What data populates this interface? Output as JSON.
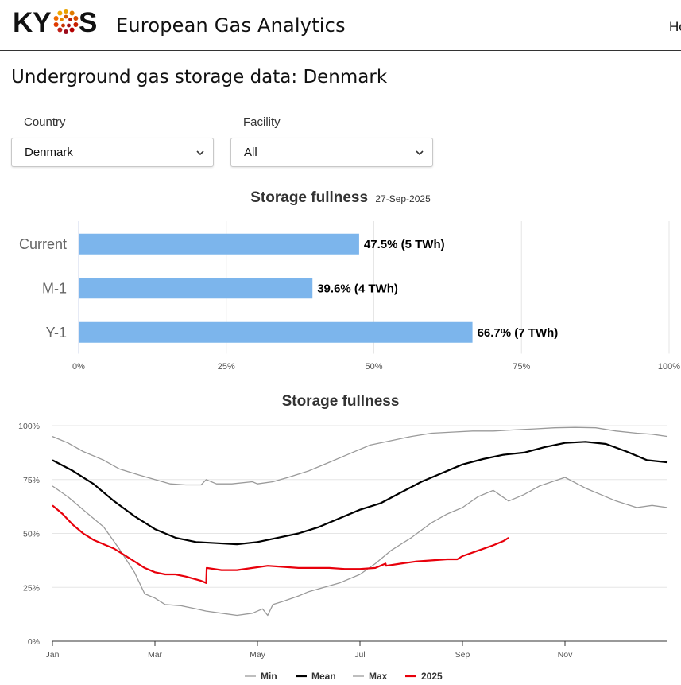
{
  "header": {
    "logo_text": "KYOS",
    "app_title": "European Gas Analytics",
    "nav_link": "Home"
  },
  "page": {
    "title": "Underground gas storage data: Denmark"
  },
  "filters": {
    "country_label": "Country",
    "country_value": "Denmark",
    "facility_label": "Facility",
    "facility_value": "All"
  },
  "colors": {
    "bar": "#7cb5ec",
    "min": "#9a9a9a",
    "mean": "#000000",
    "max": "#9a9a9a",
    "current_year": "#e8000b"
  },
  "chart_data": [
    {
      "type": "bar",
      "title": "Storage fullness",
      "subtitle": "27-Sep-2025",
      "orientation": "horizontal",
      "categories": [
        "Current",
        "M-1",
        "Y-1"
      ],
      "values": [
        47.5,
        39.6,
        66.7
      ],
      "data_labels": [
        "47.5% (5 TWh)",
        "39.6% (4 TWh)",
        "66.7% (7 TWh)"
      ],
      "x_ticks": [
        "0%",
        "25%",
        "50%",
        "75%",
        "100%"
      ],
      "xlim": [
        0,
        100
      ],
      "grid": true
    },
    {
      "type": "line",
      "title": "Storage fullness",
      "x_ticks": [
        "Jan",
        "Mar",
        "May",
        "Jul",
        "Sep",
        "Nov"
      ],
      "x_tick_months": [
        1,
        3,
        5,
        7,
        9,
        11
      ],
      "y_ticks": [
        "0%",
        "25%",
        "50%",
        "75%",
        "100%"
      ],
      "ylim": [
        0,
        100
      ],
      "xlim": [
        1,
        13
      ],
      "grid": true,
      "legend_position": "bottom",
      "series": [
        {
          "name": "Min",
          "color_key": "min",
          "x": [
            1.0,
            1.3,
            1.6,
            2.0,
            2.3,
            2.6,
            2.8,
            3.0,
            3.2,
            3.5,
            3.8,
            4.0,
            4.3,
            4.6,
            4.9,
            5.1,
            5.2,
            5.3,
            5.5,
            5.8,
            6.0,
            6.3,
            6.6,
            7.0,
            7.3,
            7.6,
            8.0,
            8.4,
            8.7,
            8.8,
            9.0,
            9.3,
            9.6,
            9.9,
            10.2,
            10.5,
            11.0,
            11.4,
            11.7,
            12.0,
            12.4,
            12.7,
            13.0
          ],
          "y": [
            72,
            67,
            61,
            53,
            43,
            32,
            22,
            20,
            17,
            16.5,
            15,
            14,
            13,
            12,
            13,
            15,
            12,
            17,
            18.5,
            21,
            23,
            25,
            27,
            31,
            36,
            42,
            48,
            55,
            59,
            60,
            62,
            67,
            70,
            65,
            68,
            72,
            76,
            71,
            68,
            65,
            62,
            63,
            62
          ]
        },
        {
          "name": "Mean",
          "color_key": "mean",
          "x": [
            1.0,
            1.4,
            1.8,
            2.2,
            2.6,
            3.0,
            3.4,
            3.8,
            4.2,
            4.6,
            5.0,
            5.4,
            5.8,
            6.2,
            6.6,
            7.0,
            7.4,
            7.8,
            8.2,
            8.6,
            9.0,
            9.4,
            9.8,
            10.2,
            10.6,
            11.0,
            11.4,
            11.8,
            12.2,
            12.6,
            13.0
          ],
          "y": [
            84,
            79,
            73,
            65,
            58,
            52,
            48,
            46,
            45.5,
            45,
            46,
            48,
            50,
            53,
            57,
            61,
            64,
            69,
            74,
            78,
            82,
            84.5,
            86.5,
            87.5,
            90,
            92,
            92.5,
            91.5,
            88,
            84,
            83
          ]
        },
        {
          "name": "Max",
          "color_key": "max",
          "x": [
            1.0,
            1.3,
            1.6,
            2.0,
            2.3,
            2.7,
            3.0,
            3.3,
            3.6,
            3.9,
            4.0,
            4.2,
            4.5,
            4.9,
            5.0,
            5.3,
            5.6,
            6.0,
            6.4,
            6.8,
            7.2,
            7.6,
            8.0,
            8.4,
            8.8,
            9.2,
            9.6,
            10.0,
            10.4,
            10.8,
            11.2,
            11.6,
            12.0,
            12.4,
            12.7,
            13.0
          ],
          "y": [
            95,
            92,
            88,
            84,
            80,
            77,
            75,
            73,
            72.5,
            72.5,
            75,
            73,
            73,
            74,
            73,
            74,
            76,
            79,
            83,
            87,
            91,
            93,
            95,
            96.5,
            97,
            97.5,
            97.5,
            98,
            98.5,
            99,
            99.2,
            99,
            97.5,
            96.5,
            96,
            95
          ]
        },
        {
          "name": "2025",
          "color_key": "current_year",
          "x": [
            1.0,
            1.2,
            1.4,
            1.6,
            1.8,
            2.0,
            2.2,
            2.4,
            2.6,
            2.8,
            3.0,
            3.2,
            3.4,
            3.6,
            3.9,
            4.0,
            4.01,
            4.3,
            4.6,
            4.9,
            5.2,
            5.5,
            5.8,
            6.1,
            6.4,
            6.7,
            7.0,
            7.3,
            7.5,
            7.51,
            7.8,
            8.1,
            8.4,
            8.7,
            8.9,
            9.0,
            9.3,
            9.6,
            9.8,
            9.9
          ],
          "y": [
            63,
            59,
            54,
            50,
            47,
            45,
            43,
            40,
            37,
            34,
            32,
            31,
            31,
            30,
            28,
            27,
            34,
            33,
            33,
            34,
            35,
            34.5,
            34,
            34,
            34,
            33.5,
            33.5,
            34,
            36,
            35,
            36,
            37,
            37.5,
            38,
            38,
            39.5,
            42,
            44.5,
            46.5,
            48
          ]
        }
      ]
    }
  ]
}
